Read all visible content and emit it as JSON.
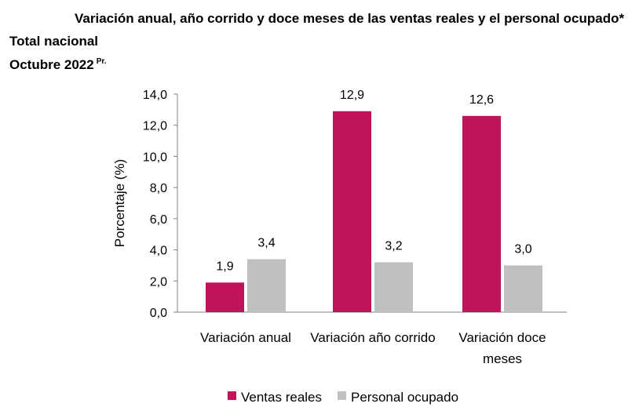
{
  "header": {
    "title": "Variación anual, año corrido y doce meses de las ventas reales y el personal ocupado*",
    "subtitle": "Total nacional",
    "period": "Octubre 2022",
    "period_mark": "Pr."
  },
  "colors": {
    "ventas": "#c0145a",
    "personal": "#c0c0c0",
    "axis": "#808080"
  },
  "chart_data": {
    "type": "bar",
    "categories": [
      [
        "Variación anual"
      ],
      [
        "Variación año corrido"
      ],
      [
        "Variación doce",
        "meses"
      ]
    ],
    "series": [
      {
        "name": "Ventas reales",
        "values": [
          1.9,
          12.9,
          12.6
        ],
        "labels": [
          "1,9",
          "12,9",
          "12,6"
        ]
      },
      {
        "name": "Personal ocupado",
        "values": [
          3.4,
          3.2,
          3.0
        ],
        "labels": [
          "3,4",
          "3,2",
          "3,0"
        ]
      }
    ],
    "ylabel": "Porcentaje (%)",
    "ylim": [
      0,
      14
    ],
    "yticks": [
      0,
      2,
      4,
      6,
      8,
      10,
      12,
      14
    ],
    "ytick_labels": [
      "0,0",
      "2,0",
      "4,0",
      "6,0",
      "8,0",
      "10,0",
      "12,0",
      "14,0"
    ],
    "legend": "bottom"
  }
}
